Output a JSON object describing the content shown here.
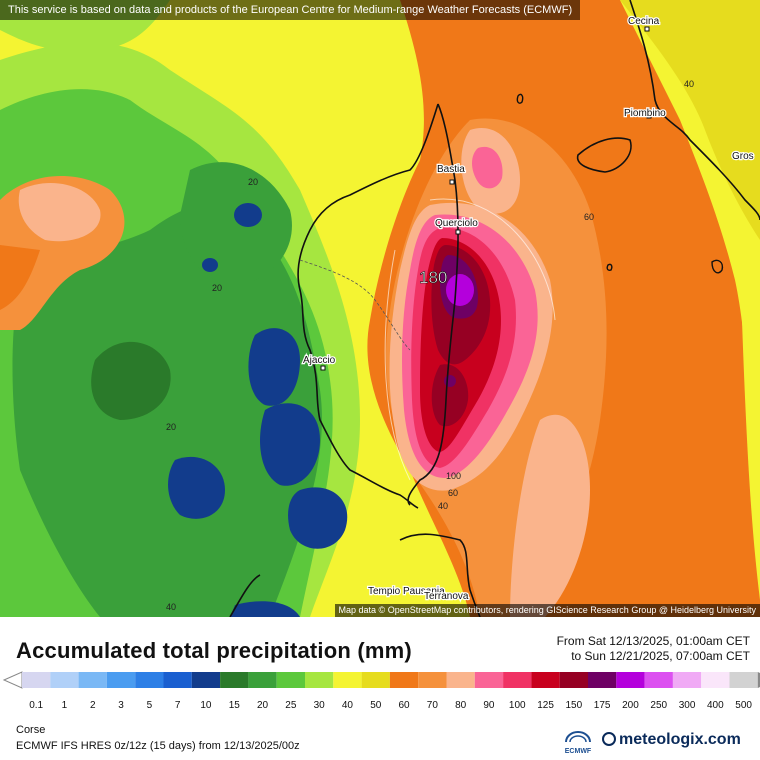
{
  "top_note": "This service is based on data and products of the European Centre for Medium-range Weather Forecasts (ECMWF)",
  "attribution": "Map data © OpenStreetMap contributors, rendering GIScience Research Group @ Heidelberg University",
  "title": "Accumulated total precipitation (mm)",
  "period_from": "From Sat 12/13/2025, 01:00am CET",
  "period_to": "to Sun 12/21/2025, 07:00am CET",
  "region": "Corse",
  "model_line": "ECMWF IFS HRES 0z/12z (15 days) from  12/13/2025/00z",
  "brand": "meteologix.com",
  "ecmwf_label": "ECMWF",
  "max_label": "180",
  "places": [
    "Cecina",
    "Piombino",
    "Gros",
    "Bastia",
    "Querciolo",
    "Ajaccio",
    "Tempio Pausania",
    "Terranova"
  ],
  "contour_labels": [
    "40",
    "60",
    "20",
    "20",
    "20",
    "100",
    "60",
    "40",
    "40"
  ],
  "legend": {
    "labels": [
      "0.1",
      "1",
      "2",
      "3",
      "5",
      "7",
      "10",
      "15",
      "20",
      "25",
      "30",
      "40",
      "50",
      "60",
      "70",
      "80",
      "90",
      "100",
      "125",
      "150",
      "175",
      "200",
      "250",
      "300",
      "400",
      "500"
    ],
    "colors": [
      "#d6d6f0",
      "#b0d0f8",
      "#7ab8f5",
      "#4a9cf0",
      "#2d7fe6",
      "#1a5fd0",
      "#123c8c",
      "#2a7a2a",
      "#3aa03a",
      "#5cc83c",
      "#a6e640",
      "#f4f432",
      "#e6dc1e",
      "#f07818",
      "#f5913c",
      "#fab48c",
      "#fa6496",
      "#f03264",
      "#c8001e",
      "#960023",
      "#6e0064",
      "#b400dc",
      "#dc50f0",
      "#f0aaf5",
      "#fae6fa",
      "#d2d2d2"
    ]
  }
}
